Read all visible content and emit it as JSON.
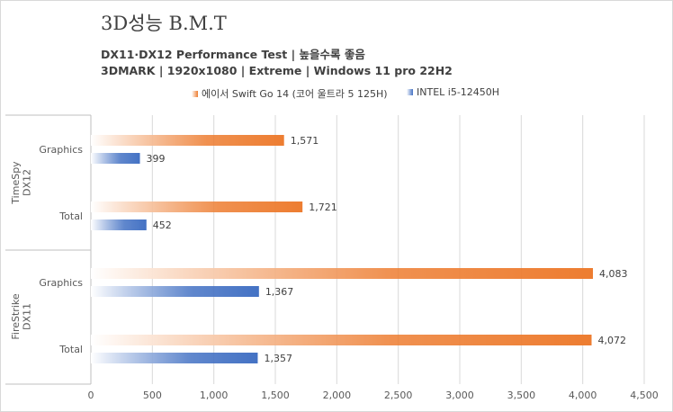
{
  "chart_data": {
    "type": "bar",
    "orientation": "horizontal",
    "title": "3D성능 B.M.T",
    "subtitle_lines": [
      "DX11·DX12 Performance Test | 높을수록 좋음",
      "3DMARK | 1920x1080 | Extreme | Windows 11 pro 22H2"
    ],
    "groups": [
      {
        "name": "TimeSpy DX12",
        "name_lines": [
          "TimeSpy",
          "DX12"
        ],
        "categories": [
          "Graphics",
          "Total"
        ]
      },
      {
        "name": "FireStrike DX11",
        "name_lines": [
          "FireStrike",
          "DX11"
        ],
        "categories": [
          "Graphics",
          "Total"
        ]
      }
    ],
    "series": [
      {
        "name": "에이서 Swift Go 14 (코어 울트라 5 125H)",
        "color": "#ed7d31",
        "values": [
          1571,
          1721,
          4083,
          4072
        ]
      },
      {
        "name": "INTEL i5-12450H",
        "color": "#4472c4",
        "values": [
          399,
          452,
          1367,
          1357
        ]
      }
    ],
    "xlim": [
      0,
      4500
    ],
    "x_ticks": [
      0,
      500,
      1000,
      1500,
      2000,
      2500,
      3000,
      3500,
      4000,
      4500
    ],
    "x_tick_labels": [
      "0",
      "500",
      "1,000",
      "1,500",
      "2,000",
      "2,500",
      "3,000",
      "3,500",
      "4,000",
      "4,500"
    ],
    "grid": true,
    "legend_position": "top",
    "data_labels": true
  }
}
